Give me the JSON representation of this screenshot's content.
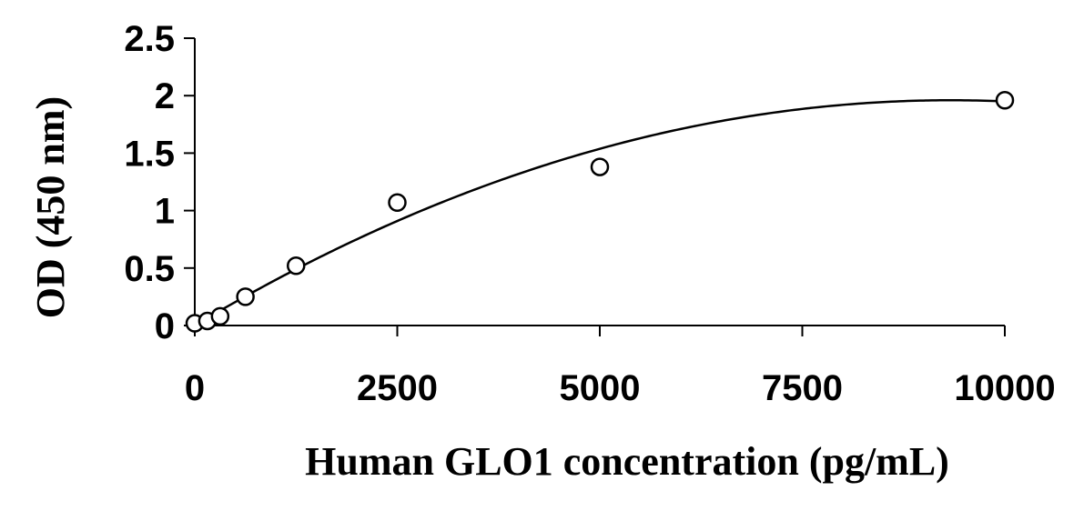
{
  "chart_data": {
    "type": "scatter",
    "title": "",
    "xlabel": "Human GLO1 concentration (pg/mL)",
    "ylabel": "OD (450 nm)",
    "xlim": [
      0,
      10000
    ],
    "ylim": [
      0,
      2.5
    ],
    "x_ticks": [
      0,
      2500,
      5000,
      7500,
      10000
    ],
    "x_tick_labels": [
      "0",
      "2500",
      "5000",
      "7500",
      "10000"
    ],
    "y_ticks": [
      0,
      0.5,
      1,
      1.5,
      2,
      2.5
    ],
    "y_tick_labels": [
      "0",
      "0.5",
      "1",
      "1.5",
      "2",
      "2.5"
    ],
    "grid": false,
    "legend": "none",
    "series": [
      {
        "marker": "open-circle",
        "x": [
          0,
          156,
          313,
          625,
          1250,
          2500,
          5000,
          10000
        ],
        "y": [
          0.02,
          0.04,
          0.08,
          0.25,
          0.52,
          1.07,
          1.38,
          1.96
        ]
      }
    ],
    "fit_curve": {
      "type": "polynomial",
      "coefficients": [
        0.0,
        0.00042,
        -2.25e-08
      ],
      "x_range": [
        0,
        10000
      ]
    },
    "colors": {
      "axis": "#000000",
      "marker_stroke": "#000000",
      "marker_fill": "#ffffff",
      "curve": "#000000"
    }
  }
}
